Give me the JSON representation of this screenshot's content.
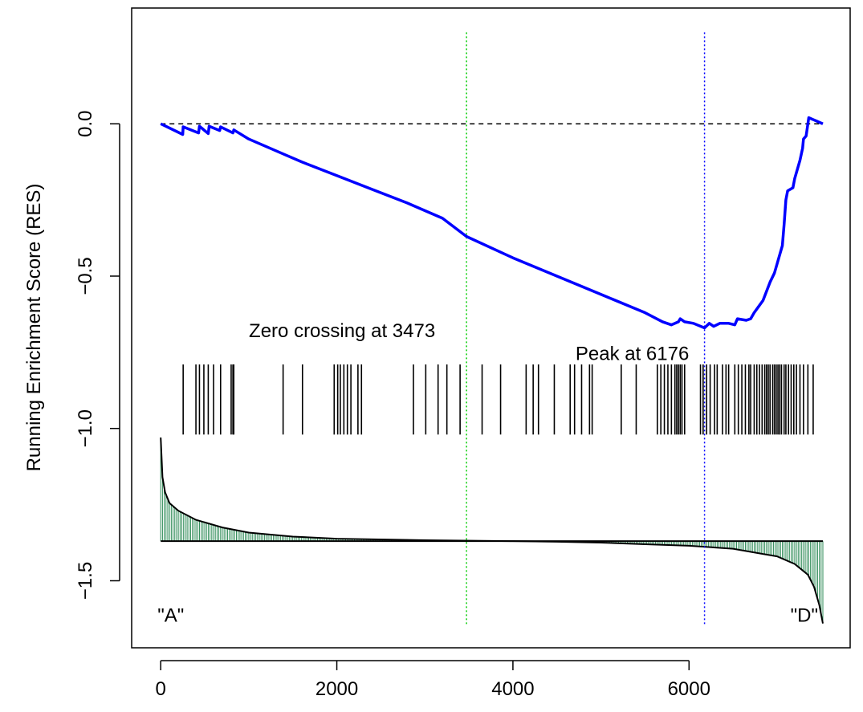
{
  "chart_data": {
    "type": "line",
    "title": "",
    "xlabel": "",
    "ylabel": "Running Enrichment Score (RES)",
    "xlim": [
      -330,
      7830
    ],
    "ylim": [
      -1.72,
      0.38
    ],
    "x_ticks": [
      0,
      2000,
      4000,
      6000
    ],
    "y_ticks": [
      0.0,
      -0.5,
      -1.0,
      -1.5
    ],
    "x_tick_labels": [
      "0",
      "2000",
      "4000",
      "6000"
    ],
    "y_tick_labels": [
      "0.0",
      "−0.5",
      "−1.0",
      "−1.5"
    ],
    "grid": false,
    "zero_line": {
      "y": 0,
      "style": "dashed",
      "color": "#000000"
    },
    "colors": {
      "running_score": "#0000ff",
      "zero_crossing_line": "#00cc00",
      "peak_line": "#0000ff",
      "hits": "#000000",
      "ranked_metric_fill": "#2e8b57",
      "ranked_metric_line": "#000000"
    },
    "running_score": {
      "name": "",
      "points": [
        [
          0,
          0.0
        ],
        [
          250,
          -0.035
        ],
        [
          255,
          -0.01
        ],
        [
          430,
          -0.03
        ],
        [
          440,
          -0.008
        ],
        [
          540,
          -0.032
        ],
        [
          550,
          -0.008
        ],
        [
          670,
          -0.022
        ],
        [
          680,
          -0.01
        ],
        [
          820,
          -0.03
        ],
        [
          830,
          -0.02
        ],
        [
          1000,
          -0.05
        ],
        [
          1400,
          -0.1
        ],
        [
          1600,
          -0.125
        ],
        [
          2000,
          -0.17
        ],
        [
          2400,
          -0.215
        ],
        [
          2800,
          -0.26
        ],
        [
          3200,
          -0.31
        ],
        [
          3473,
          -0.37
        ],
        [
          4000,
          -0.44
        ],
        [
          4500,
          -0.5
        ],
        [
          5000,
          -0.56
        ],
        [
          5500,
          -0.62
        ],
        [
          5700,
          -0.65
        ],
        [
          5800,
          -0.66
        ],
        [
          5880,
          -0.65
        ],
        [
          5900,
          -0.64
        ],
        [
          5950,
          -0.65
        ],
        [
          6050,
          -0.655
        ],
        [
          6176,
          -0.67
        ],
        [
          6230,
          -0.655
        ],
        [
          6280,
          -0.665
        ],
        [
          6350,
          -0.655
        ],
        [
          6450,
          -0.655
        ],
        [
          6520,
          -0.66
        ],
        [
          6550,
          -0.64
        ],
        [
          6650,
          -0.645
        ],
        [
          6700,
          -0.64
        ],
        [
          6740,
          -0.62
        ],
        [
          6790,
          -0.6
        ],
        [
          6840,
          -0.58
        ],
        [
          6880,
          -0.55
        ],
        [
          6920,
          -0.52
        ],
        [
          6970,
          -0.49
        ],
        [
          7000,
          -0.46
        ],
        [
          7030,
          -0.43
        ],
        [
          7060,
          -0.4
        ],
        [
          7080,
          -0.33
        ],
        [
          7100,
          -0.25
        ],
        [
          7120,
          -0.22
        ],
        [
          7180,
          -0.21
        ],
        [
          7200,
          -0.18
        ],
        [
          7230,
          -0.15
        ],
        [
          7260,
          -0.12
        ],
        [
          7290,
          -0.08
        ],
        [
          7300,
          -0.05
        ],
        [
          7330,
          -0.04
        ],
        [
          7360,
          0.02
        ],
        [
          7520,
          0.0
        ]
      ]
    },
    "hits": [
      255,
      400,
      440,
      490,
      540,
      600,
      680,
      800,
      820,
      830,
      1390,
      1610,
      1970,
      2010,
      2040,
      2080,
      2120,
      2160,
      2240,
      2280,
      2870,
      3010,
      3150,
      3250,
      3400,
      3650,
      3860,
      4150,
      4230,
      4290,
      4470,
      4650,
      4700,
      4780,
      4870,
      4900,
      5230,
      5400,
      5640,
      5680,
      5720,
      5760,
      5800,
      5840,
      5860,
      5880,
      5900,
      5920,
      5950,
      6130,
      6160,
      6200,
      6240,
      6290,
      6320,
      6380,
      6420,
      6450,
      6520,
      6560,
      6600,
      6640,
      6680,
      6700,
      6740,
      6770,
      6800,
      6830,
      6860,
      6880,
      6900,
      6920,
      6950,
      6970,
      6990,
      7010,
      7030,
      7050,
      7080,
      7100,
      7130,
      7160,
      7190,
      7220,
      7260,
      7300,
      7350,
      7410
    ],
    "hit_band": {
      "y_top": -0.79,
      "y_bottom": -1.02
    },
    "ranked_metric": {
      "baseline": -1.37,
      "points": [
        [
          0,
          -1.03
        ],
        [
          20,
          -1.16
        ],
        [
          50,
          -1.21
        ],
        [
          100,
          -1.245
        ],
        [
          200,
          -1.27
        ],
        [
          400,
          -1.3
        ],
        [
          700,
          -1.325
        ],
        [
          1000,
          -1.342
        ],
        [
          1500,
          -1.355
        ],
        [
          2000,
          -1.362
        ],
        [
          3000,
          -1.367
        ],
        [
          4000,
          -1.37
        ],
        [
          4500,
          -1.372
        ],
        [
          5000,
          -1.375
        ],
        [
          5500,
          -1.38
        ],
        [
          6000,
          -1.385
        ],
        [
          6500,
          -1.395
        ],
        [
          6800,
          -1.41
        ],
        [
          7000,
          -1.42
        ],
        [
          7200,
          -1.445
        ],
        [
          7350,
          -1.48
        ],
        [
          7420,
          -1.52
        ],
        [
          7480,
          -1.58
        ],
        [
          7520,
          -1.64
        ]
      ]
    },
    "zero_crossing": {
      "x": 3473,
      "label": "Zero crossing at 3473"
    },
    "peak": {
      "x": 6176,
      "label": "Peak at 6176"
    },
    "corner_labels": {
      "left": "\"A\"",
      "right": "\"D\""
    }
  }
}
